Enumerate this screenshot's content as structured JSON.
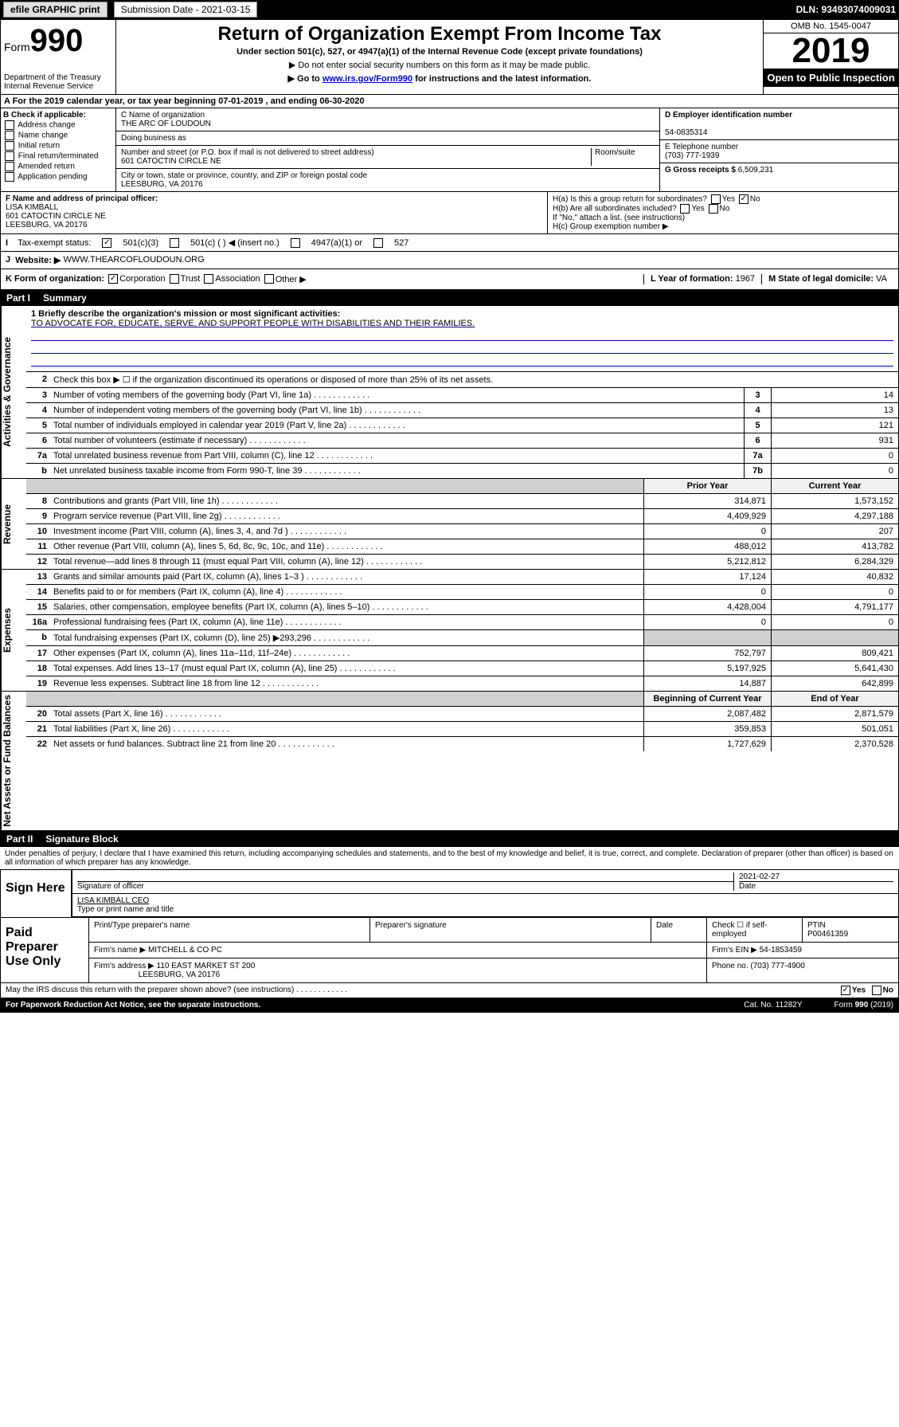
{
  "top": {
    "efile": "efile GRAPHIC print",
    "sub_label": "Submission Date - 2021-03-15",
    "dln": "DLN: 93493074009031"
  },
  "header": {
    "form_label": "Form",
    "form_num": "990",
    "dept": "Department of the Treasury\nInternal Revenue Service",
    "title": "Return of Organization Exempt From Income Tax",
    "sub": "Under section 501(c), 527, or 4947(a)(1) of the Internal Revenue Code (except private foundations)",
    "note1": "▶ Do not enter social security numbers on this form as it may be made public.",
    "note2_pre": "▶ Go to ",
    "note2_link": "www.irs.gov/Form990",
    "note2_post": " for instructions and the latest information.",
    "omb": "OMB No. 1545-0047",
    "year": "2019",
    "open": "Open to Public Inspection"
  },
  "rowA": "A For the 2019 calendar year, or tax year beginning 07-01-2019   , and ending 06-30-2020",
  "boxB": {
    "label": "B Check if applicable:",
    "opts": [
      "Address change",
      "Name change",
      "Initial return",
      "Final return/terminated",
      "Amended return",
      "Application pending"
    ]
  },
  "boxC": {
    "name_label": "C Name of organization",
    "name": "THE ARC OF LOUDOUN",
    "dba_label": "Doing business as",
    "addr_label": "Number and street (or P.O. box if mail is not delivered to street address)",
    "room_label": "Room/suite",
    "addr": "601 CATOCTIN CIRCLE NE",
    "city_label": "City or town, state or province, country, and ZIP or foreign postal code",
    "city": "LEESBURG, VA  20176"
  },
  "boxD": {
    "ein_label": "D Employer identification number",
    "ein": "54-0835314",
    "tel_label": "E Telephone number",
    "tel": "(703) 777-1939",
    "gross_label": "G Gross receipts $ ",
    "gross": "6,509,231"
  },
  "boxF": {
    "label": "F  Name and address of principal officer:",
    "name": "LISA KIMBALL",
    "addr1": "601 CATOCTIN CIRCLE NE",
    "addr2": "LEESBURG, VA  20176"
  },
  "boxH": {
    "ha": "H(a)  Is this a group return for subordinates?",
    "hb": "H(b)  Are all subordinates included?",
    "hb_note": "If \"No,\" attach a list. (see instructions)",
    "hc": "H(c)  Group exemption number ▶",
    "yes": "Yes",
    "no": "No"
  },
  "rowI": {
    "label": "Tax-exempt status:",
    "o1": "501(c)(3)",
    "o2": "501(c) (  ) ◀ (insert no.)",
    "o3": "4947(a)(1) or",
    "o4": "527"
  },
  "rowJ": {
    "label": "Website: ▶",
    "val": "WWW.THEARCOFLOUDOUN.ORG"
  },
  "rowK": {
    "label": "K Form of organization:",
    "o1": "Corporation",
    "o2": "Trust",
    "o3": "Association",
    "o4": "Other ▶",
    "l_label": "L Year of formation: ",
    "l_val": "1967",
    "m_label": "M State of legal domicile: ",
    "m_val": "VA"
  },
  "part1": {
    "num": "Part I",
    "title": "Summary"
  },
  "mission": {
    "label": "1  Briefly describe the organization's mission or most significant activities:",
    "text": "TO ADVOCATE FOR, EDUCATE, SERVE, AND SUPPORT PEOPLE WITH DISABILITIES AND THEIR FAMILIES."
  },
  "vtabs": {
    "gov": "Activities & Governance",
    "rev": "Revenue",
    "exp": "Expenses",
    "net": "Net Assets or Fund Balances"
  },
  "gov_lines": [
    {
      "n": "2",
      "d": "Check this box ▶ ☐  if the organization discontinued its operations or disposed of more than 25% of its net assets."
    },
    {
      "n": "3",
      "d": "Number of voting members of the governing body (Part VI, line 1a)",
      "b": "3",
      "v": "14"
    },
    {
      "n": "4",
      "d": "Number of independent voting members of the governing body (Part VI, line 1b)",
      "b": "4",
      "v": "13"
    },
    {
      "n": "5",
      "d": "Total number of individuals employed in calendar year 2019 (Part V, line 2a)",
      "b": "5",
      "v": "121"
    },
    {
      "n": "6",
      "d": "Total number of volunteers (estimate if necessary)",
      "b": "6",
      "v": "931"
    },
    {
      "n": "7a",
      "d": "Total unrelated business revenue from Part VIII, column (C), line 12",
      "b": "7a",
      "v": "0"
    },
    {
      "n": "b",
      "d": "Net unrelated business taxable income from Form 990-T, line 39",
      "b": "7b",
      "v": "0"
    }
  ],
  "col_hdr": {
    "prior": "Prior Year",
    "curr": "Current Year",
    "beg": "Beginning of Current Year",
    "end": "End of Year"
  },
  "rev_lines": [
    {
      "n": "8",
      "d": "Contributions and grants (Part VIII, line 1h)",
      "p": "314,871",
      "c": "1,573,152"
    },
    {
      "n": "9",
      "d": "Program service revenue (Part VIII, line 2g)",
      "p": "4,409,929",
      "c": "4,297,188"
    },
    {
      "n": "10",
      "d": "Investment income (Part VIII, column (A), lines 3, 4, and 7d )",
      "p": "0",
      "c": "207"
    },
    {
      "n": "11",
      "d": "Other revenue (Part VIII, column (A), lines 5, 6d, 8c, 9c, 10c, and 11e)",
      "p": "488,012",
      "c": "413,782"
    },
    {
      "n": "12",
      "d": "Total revenue—add lines 8 through 11 (must equal Part VIII, column (A), line 12)",
      "p": "5,212,812",
      "c": "6,284,329"
    }
  ],
  "exp_lines": [
    {
      "n": "13",
      "d": "Grants and similar amounts paid (Part IX, column (A), lines 1–3 )",
      "p": "17,124",
      "c": "40,832"
    },
    {
      "n": "14",
      "d": "Benefits paid to or for members (Part IX, column (A), line 4)",
      "p": "0",
      "c": "0"
    },
    {
      "n": "15",
      "d": "Salaries, other compensation, employee benefits (Part IX, column (A), lines 5–10)",
      "p": "4,428,004",
      "c": "4,791,177"
    },
    {
      "n": "16a",
      "d": "Professional fundraising fees (Part IX, column (A), line 11e)",
      "p": "0",
      "c": "0"
    },
    {
      "n": "b",
      "d": "Total fundraising expenses (Part IX, column (D), line 25) ▶293,296",
      "p": "",
      "c": "",
      "grey": true
    },
    {
      "n": "17",
      "d": "Other expenses (Part IX, column (A), lines 11a–11d, 11f–24e)",
      "p": "752,797",
      "c": "809,421"
    },
    {
      "n": "18",
      "d": "Total expenses. Add lines 13–17 (must equal Part IX, column (A), line 25)",
      "p": "5,197,925",
      "c": "5,641,430"
    },
    {
      "n": "19",
      "d": "Revenue less expenses. Subtract line 18 from line 12",
      "p": "14,887",
      "c": "642,899"
    }
  ],
  "net_lines": [
    {
      "n": "20",
      "d": "Total assets (Part X, line 16)",
      "p": "2,087,482",
      "c": "2,871,579"
    },
    {
      "n": "21",
      "d": "Total liabilities (Part X, line 26)",
      "p": "359,853",
      "c": "501,051"
    },
    {
      "n": "22",
      "d": "Net assets or fund balances. Subtract line 21 from line 20",
      "p": "1,727,629",
      "c": "2,370,528"
    }
  ],
  "part2": {
    "num": "Part II",
    "title": "Signature Block"
  },
  "penalty": "Under penalties of perjury, I declare that I have examined this return, including accompanying schedules and statements, and to the best of my knowledge and belief, it is true, correct, and complete. Declaration of preparer (other than officer) is based on all information of which preparer has any knowledge.",
  "sign": {
    "here": "Sign Here",
    "sig_label": "Signature of officer",
    "date": "2021-02-27",
    "date_label": "Date",
    "name": "LISA KIMBALL CEO",
    "name_label": "Type or print name and title"
  },
  "prep": {
    "label": "Paid Preparer Use Only",
    "h1": "Print/Type preparer's name",
    "h2": "Preparer's signature",
    "h3": "Date",
    "h4": "Check ☐ if self-employed",
    "h5": "PTIN",
    "ptin": "P00461359",
    "firm_label": "Firm's name   ▶",
    "firm": "MITCHELL & CO PC",
    "ein_label": "Firm's EIN ▶",
    "ein": "54-1853459",
    "addr_label": "Firm's address ▶",
    "addr": "110 EAST MARKET ST 200",
    "addr2": "LEESBURG, VA  20176",
    "phone_label": "Phone no. ",
    "phone": "(703) 777-4900"
  },
  "discuss": "May the IRS discuss this return with the preparer shown above? (see instructions)",
  "foot": {
    "pra": "For Paperwork Reduction Act Notice, see the separate instructions.",
    "cat": "Cat. No. 11282Y",
    "form": "Form 990 (2019)"
  }
}
